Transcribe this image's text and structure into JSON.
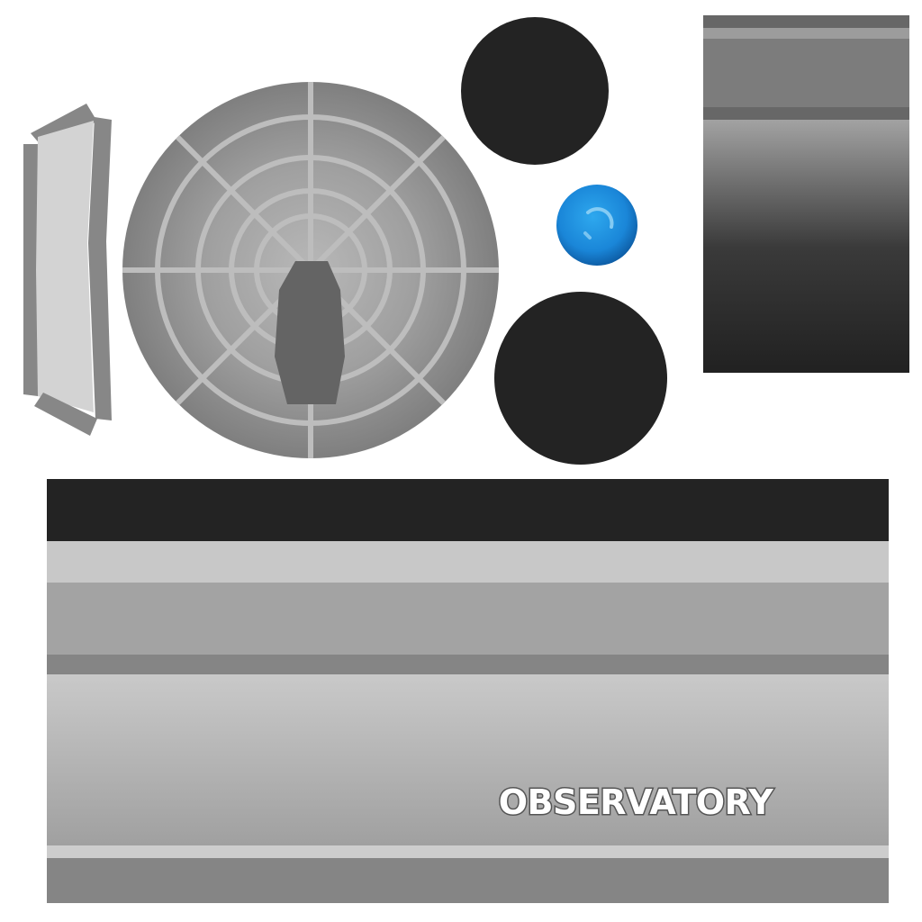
{
  "texture": {
    "label": "OBSERVATORY"
  },
  "colors": {
    "background": "#ffffff",
    "dark": "#232323",
    "gray_light": "#c8c8c8",
    "gray_mid": "#a3a3a3",
    "gray_dark": "#858585",
    "lens_blue": "#1a86d8",
    "lens_highlight": "#8fd0f5"
  },
  "icons": {
    "lens": "blue-glass-lens-icon",
    "dish": "radar-grid-dish"
  }
}
